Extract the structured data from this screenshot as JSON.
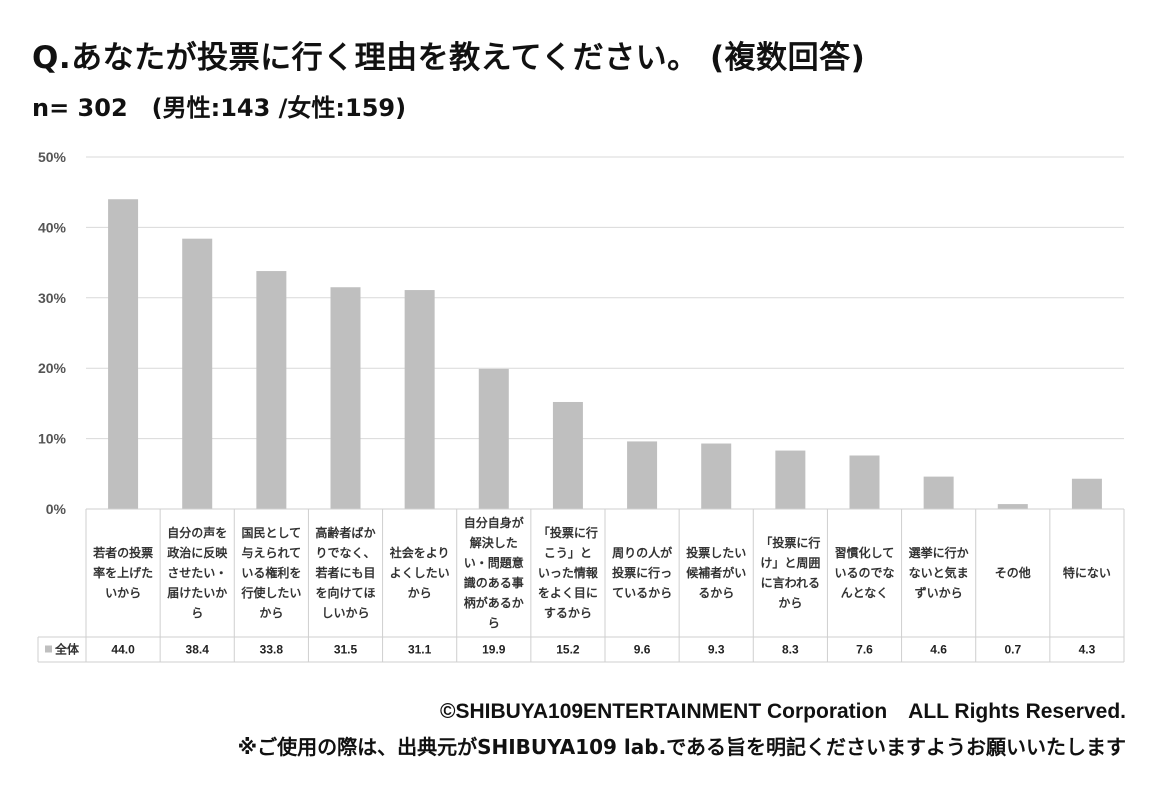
{
  "header": {
    "title": "Q.あなたが投票に行く理由を教えてください。 (複数回答)",
    "subtitle": "n= 302　(男性:143 /女性:159)"
  },
  "footer": {
    "copyright": "©SHIBUYA109ENTERTAINMENT Corporation　ALL Rights Reserved.",
    "note": "※ご使用の際は、出典元がSHIBUYA109 lab.である旨を明記くださいますようお願いいたします"
  },
  "chart_data": {
    "type": "bar",
    "title": "",
    "xlabel": "",
    "ylabel": "",
    "ylim": [
      0,
      50
    ],
    "yticks": [
      "0%",
      "10%",
      "20%",
      "30%",
      "40%",
      "50%"
    ],
    "grid": true,
    "bar_color": "#bfbfbf",
    "legend_position": "data-table-left",
    "categories": [
      [
        "若者の投票",
        "率を上げた",
        "いから"
      ],
      [
        "自分の声を",
        "政治に反映",
        "させたい・",
        "届けたいか",
        "ら"
      ],
      [
        "国民として",
        "与えられて",
        "いる権利を",
        "行使したい",
        "から"
      ],
      [
        "高齢者ばか",
        "りでなく、",
        "若者にも目",
        "を向けてほ",
        "しいから"
      ],
      [
        "社会をより",
        "よくしたい",
        "から"
      ],
      [
        "自分自身が",
        "解決した",
        "い・問題意",
        "識のある事",
        "柄があるか",
        "ら"
      ],
      [
        "「投票に行",
        "こう」と",
        "いった情報",
        "をよく目に",
        "するから"
      ],
      [
        "周りの人が",
        "投票に行っ",
        "ているから"
      ],
      [
        "投票したい",
        "候補者がい",
        "るから"
      ],
      [
        "「投票に行",
        "け」と周囲",
        "に言われる",
        "から"
      ],
      [
        "習慣化して",
        "いるのでな",
        "んとなく"
      ],
      [
        "選挙に行か",
        "ないと気ま",
        "ずいから"
      ],
      [
        "その他"
      ],
      [
        "特にない"
      ]
    ],
    "series": [
      {
        "name": "全体",
        "values": [
          44.0,
          38.4,
          33.8,
          31.5,
          31.1,
          19.9,
          15.2,
          9.6,
          9.3,
          8.3,
          7.6,
          4.6,
          0.7,
          4.3
        ]
      }
    ],
    "data_labels": [
      "44.0",
      "38.4",
      "33.8",
      "31.5",
      "31.1",
      "19.9",
      "15.2",
      "9.6",
      "9.3",
      "8.3",
      "7.6",
      "4.6",
      "0.7",
      "4.3"
    ]
  }
}
